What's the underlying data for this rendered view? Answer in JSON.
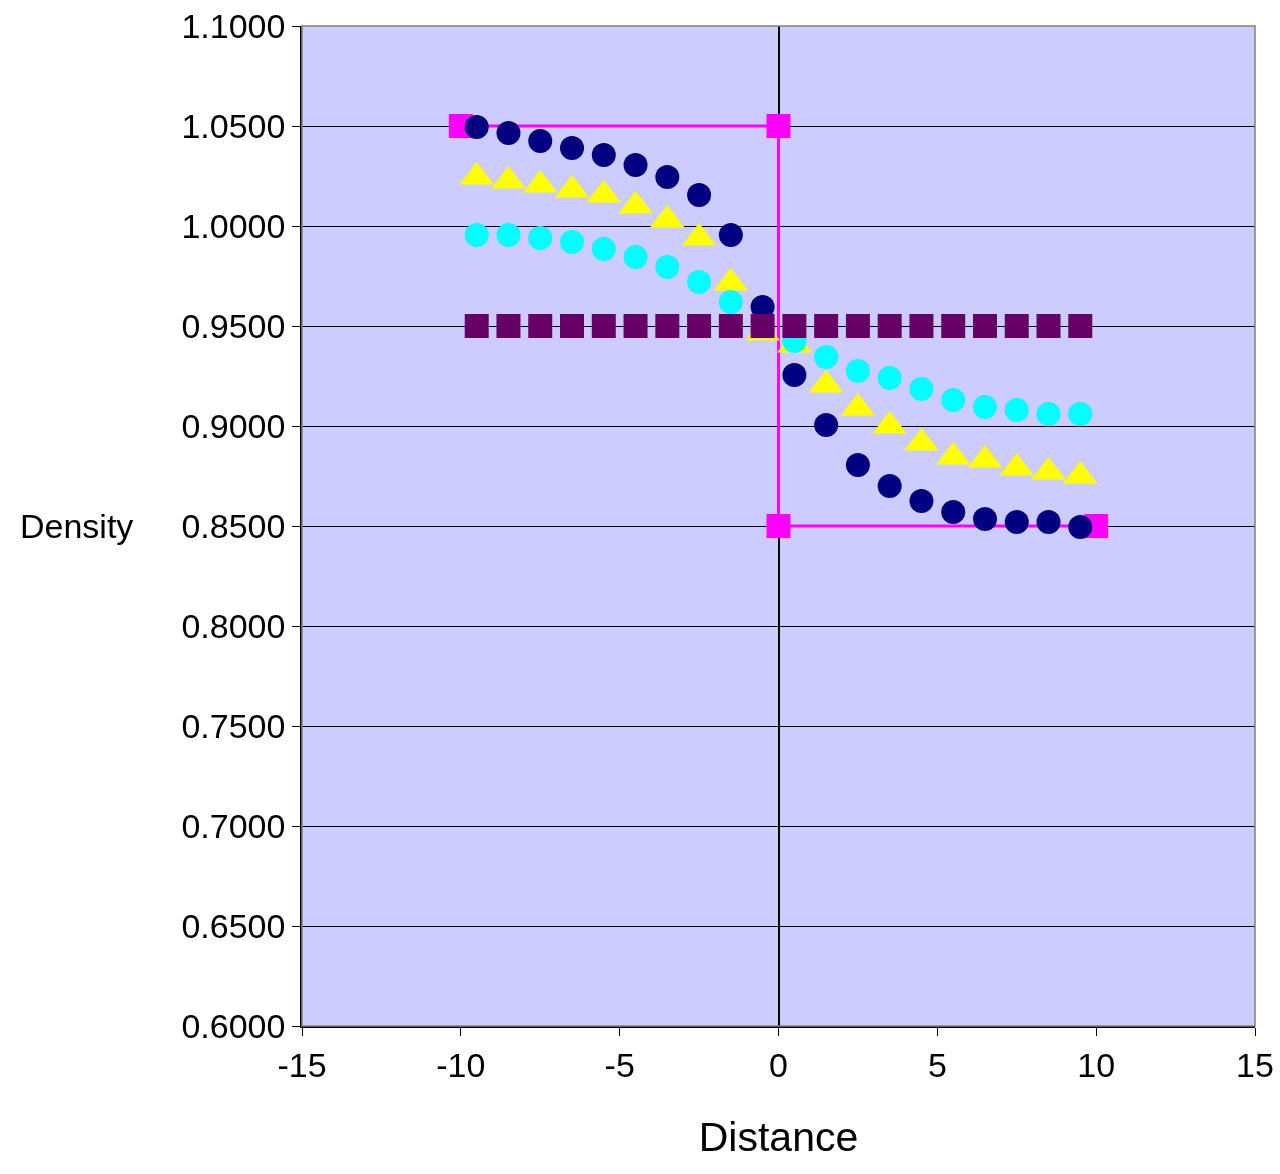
{
  "chart_data": {
    "type": "scatter",
    "xlabel": "Distance",
    "ylabel": "Density",
    "x": [
      -9.5,
      -8.5,
      -7.5,
      -6.5,
      -5.5,
      -4.5,
      -3.5,
      -2.5,
      -1.5,
      -0.5,
      0.5,
      1.5,
      2.5,
      3.5,
      4.5,
      5.5,
      6.5,
      7.5,
      8.5,
      9.5
    ],
    "series": [
      {
        "type": "line",
        "color": "#ff00ff",
        "marker": "square",
        "line_style": "solid",
        "x": [
          -10,
          0,
          0,
          10
        ],
        "values": [
          1.05,
          1.05,
          0.85,
          0.85
        ]
      },
      {
        "color": "#000080",
        "marker": "circle",
        "values": [
          1.0495,
          1.0465,
          1.0425,
          1.039,
          1.0355,
          1.0305,
          1.0245,
          1.0155,
          0.9955,
          0.9595,
          0.9255,
          0.9005,
          0.8805,
          0.87,
          0.8625,
          0.857,
          0.8535,
          0.852,
          0.852,
          0.8495
        ]
      },
      {
        "color": "#ffff00",
        "marker": "triangle",
        "values": [
          1.0245,
          1.0225,
          1.0205,
          1.018,
          1.0155,
          1.01,
          1.003,
          0.994,
          0.9715,
          0.9465,
          0.9405,
          0.9205,
          0.909,
          0.9,
          0.8915,
          0.8845,
          0.883,
          0.879,
          0.877,
          0.875
        ]
      },
      {
        "color": "#00ffff",
        "marker": "circle",
        "values": [
          0.9955,
          0.9955,
          0.994,
          0.992,
          0.9885,
          0.9845,
          0.9795,
          0.972,
          0.962,
          null,
          0.9425,
          0.9345,
          0.9275,
          0.924,
          0.9185,
          0.913,
          0.9095,
          0.908,
          0.906,
          0.906
        ]
      },
      {
        "color": "#660066",
        "marker": "square",
        "values": [
          0.95,
          0.95,
          0.95,
          0.95,
          0.95,
          0.95,
          0.95,
          0.95,
          0.95,
          0.95,
          0.95,
          0.95,
          0.95,
          0.95,
          0.95,
          0.95,
          0.95,
          0.95,
          0.95,
          0.95
        ]
      }
    ],
    "xlim": [
      -15,
      15
    ],
    "xticks": [
      -15,
      -10,
      -5,
      0,
      5,
      10,
      15
    ],
    "ylim": [
      0.6,
      1.1
    ],
    "yticks": [
      {
        "value": 0.6,
        "label": "0.6000"
      },
      {
        "value": 0.65,
        "label": "0.6500"
      },
      {
        "value": 0.7,
        "label": "0.7000"
      },
      {
        "value": 0.75,
        "label": "0.7500"
      },
      {
        "value": 0.8,
        "label": "0.8000"
      },
      {
        "value": 0.85,
        "label": "0.8500"
      },
      {
        "value": 0.9,
        "label": "0.9000"
      },
      {
        "value": 0.95,
        "label": "0.9500"
      },
      {
        "value": 1.0,
        "label": "1.0000"
      },
      {
        "value": 1.05,
        "label": "1.0500"
      },
      {
        "value": 1.1,
        "label": "1.1000"
      }
    ],
    "grid": "y"
  }
}
